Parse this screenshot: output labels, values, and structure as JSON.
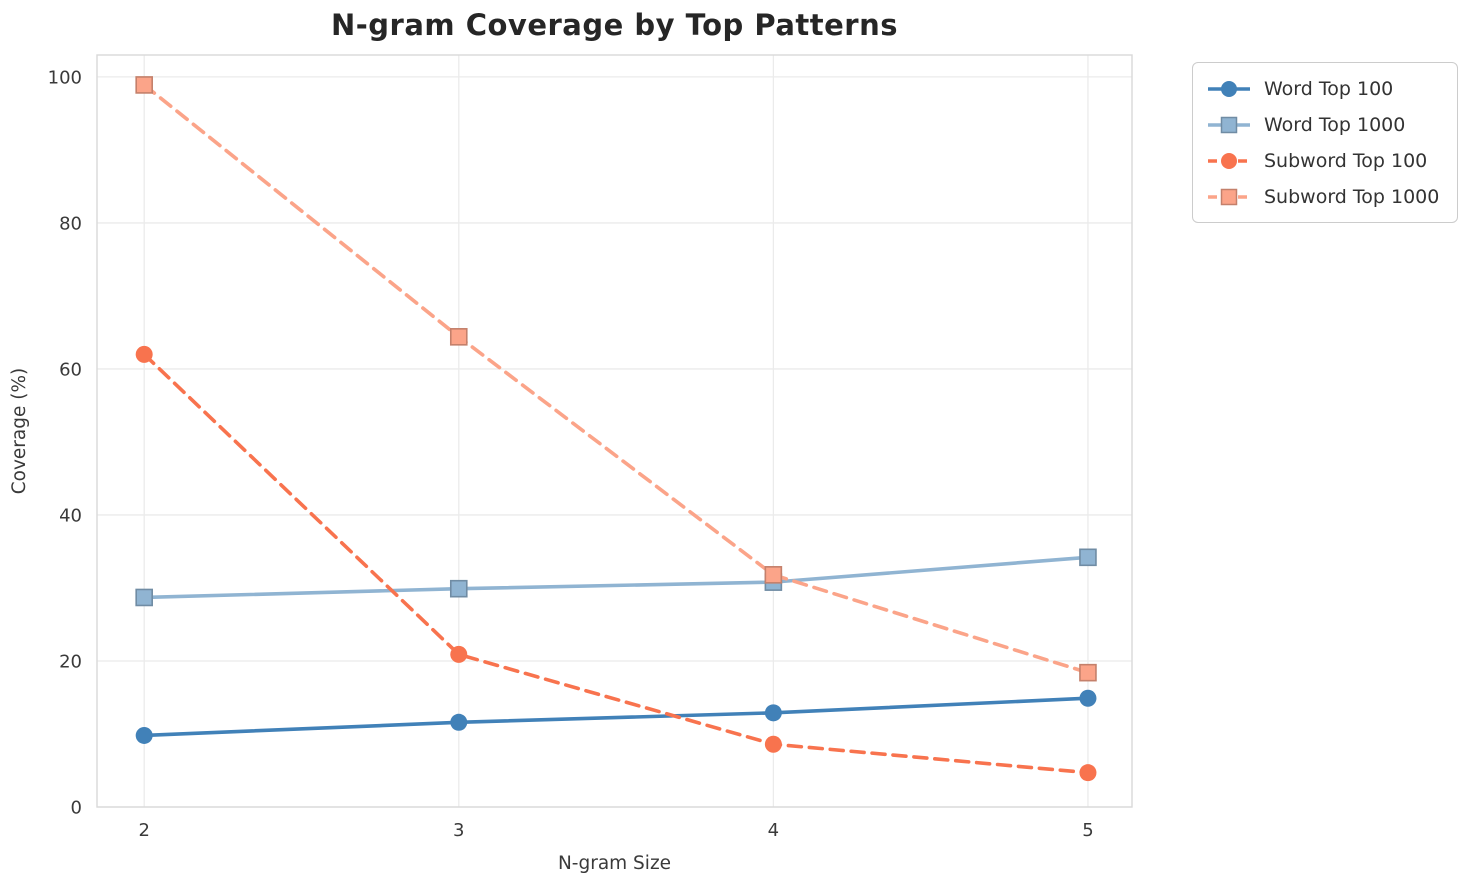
{
  "chart_data": {
    "type": "line",
    "title": "N-gram Coverage by Top Patterns",
    "xlabel": "N-gram Size",
    "ylabel": "Coverage (%)",
    "x": [
      2,
      3,
      4,
      5
    ],
    "xticks": [
      "2",
      "3",
      "4",
      "5"
    ],
    "yticks": [
      0,
      20,
      40,
      60,
      80,
      100
    ],
    "ylim": [
      0,
      103
    ],
    "xlim": [
      1.85,
      5.14
    ],
    "grid": true,
    "legend_position": "outside-top-right",
    "series": [
      {
        "name": "Word Top 100",
        "values": [
          9.8,
          11.6,
          12.9,
          14.9
        ],
        "color": "#4181b8",
        "linestyle": "solid",
        "marker": "circle"
      },
      {
        "name": "Word Top 1000",
        "values": [
          28.7,
          29.9,
          30.8,
          34.2
        ],
        "color": "#90b4d2",
        "linestyle": "solid",
        "marker": "square"
      },
      {
        "name": "Subword Top 100",
        "values": [
          62.0,
          20.9,
          8.6,
          4.7
        ],
        "color": "#f8734e",
        "linestyle": "dashed",
        "marker": "circle"
      },
      {
        "name": "Subword Top 1000",
        "values": [
          98.9,
          64.4,
          31.8,
          18.4
        ],
        "color": "#fba489",
        "linestyle": "dashed",
        "marker": "square"
      }
    ],
    "colors": {
      "grid": "#ebebeb",
      "spine": "#d9d9d9",
      "title_text": "#262626",
      "tick_text": "#3a3a3a",
      "legend_text": "#333333"
    }
  }
}
